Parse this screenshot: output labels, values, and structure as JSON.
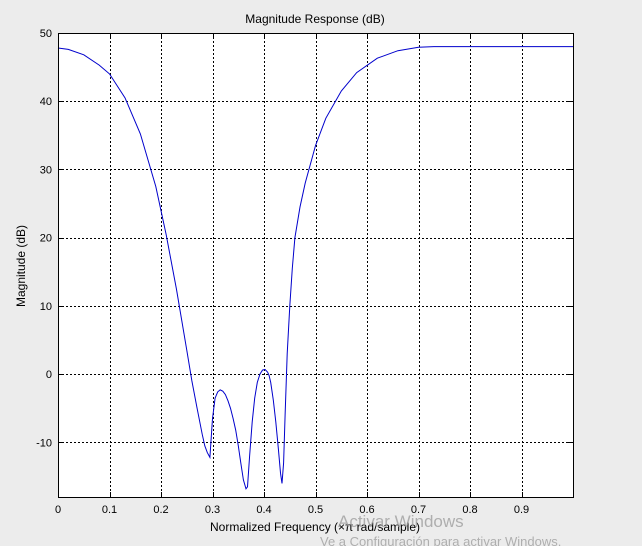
{
  "chart_data": {
    "type": "line",
    "title": "Magnitude Response (dB)",
    "xlabel": "Normalized Frequency (×π rad/sample)",
    "ylabel": "Magnitude (dB)",
    "xlim": [
      0,
      1
    ],
    "ylim": [
      -18,
      50
    ],
    "grid": true,
    "x_ticks": [
      0,
      0.1,
      0.2,
      0.3,
      0.4,
      0.5,
      0.6,
      0.7,
      0.8,
      0.9
    ],
    "y_ticks": [
      -10,
      0,
      10,
      20,
      30,
      40,
      50
    ],
    "line_color": "#0000cc",
    "series": [
      {
        "x": [
          0,
          0.02,
          0.05,
          0.08,
          0.1,
          0.13,
          0.16,
          0.19,
          0.21,
          0.23,
          0.25,
          0.26,
          0.27,
          0.28,
          0.285,
          0.29,
          0.295,
          0.3,
          0.305,
          0.31,
          0.315,
          0.32,
          0.325,
          0.33,
          0.335,
          0.34,
          0.345,
          0.35,
          0.355,
          0.36,
          0.365,
          0.368,
          0.372,
          0.377,
          0.382,
          0.387,
          0.392,
          0.397,
          0.402,
          0.407,
          0.41,
          0.413,
          0.418,
          0.423,
          0.428,
          0.432,
          0.435,
          0.438,
          0.441,
          0.445,
          0.45,
          0.455,
          0.46,
          0.47,
          0.48,
          0.5,
          0.52,
          0.55,
          0.58,
          0.62,
          0.66,
          0.7,
          0.73,
          0.76,
          0.8,
          0.9,
          1.0
        ],
        "y": [
          47.8,
          47.6,
          46.8,
          45.3,
          44.0,
          40.5,
          35.2,
          27.5,
          20.5,
          12.5,
          3.5,
          -1.0,
          -5.0,
          -8.8,
          -10.5,
          -11.5,
          -12.2,
          -6.5,
          -3.5,
          -2.6,
          -2.3,
          -2.5,
          -3.0,
          -3.9,
          -5.0,
          -6.5,
          -8.2,
          -10.5,
          -13.0,
          -15.5,
          -16.8,
          -16.5,
          -12.0,
          -7.0,
          -3.5,
          -1.2,
          0.0,
          0.6,
          0.7,
          0.3,
          -0.2,
          -1.2,
          -3.8,
          -7.0,
          -11.0,
          -14.5,
          -16.0,
          -13.0,
          -6.0,
          3.0,
          10.0,
          15.5,
          20.0,
          24.5,
          28.0,
          33.5,
          37.5,
          41.5,
          44.2,
          46.3,
          47.4,
          47.9,
          48.0,
          48.0,
          48.0,
          48.0,
          48.0
        ]
      }
    ]
  },
  "watermark": {
    "line1": "Activar Windows",
    "line2": "Ve a Configuración para activar Windows."
  }
}
